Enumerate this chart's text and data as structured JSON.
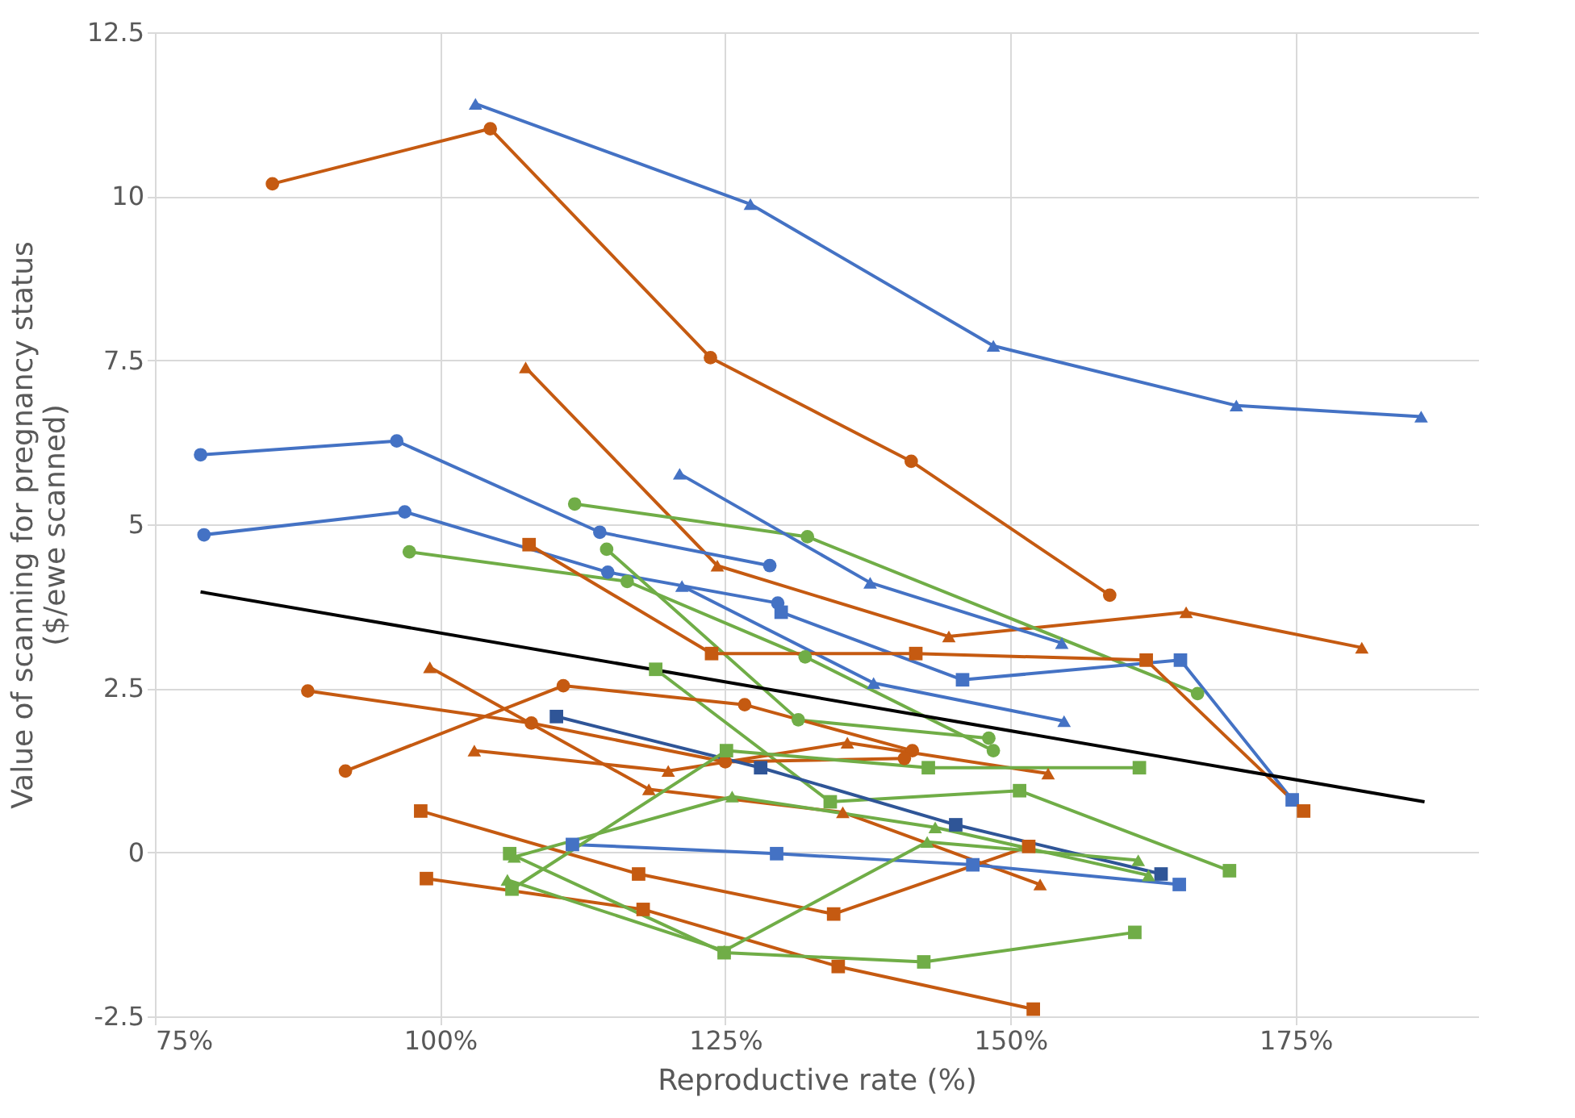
{
  "chart_data": {
    "type": "line",
    "xlabel": "Reproductive rate (%)",
    "ylabel": "Value of scanning for pregnancy status\n($/ewe scanned)",
    "xlim": [
      75,
      191
    ],
    "xticks": [
      {
        "value": 75,
        "label": "75%"
      },
      {
        "value": 100,
        "label": "100%"
      },
      {
        "value": 125,
        "label": "125%"
      },
      {
        "value": 150,
        "label": "150%"
      },
      {
        "value": 175,
        "label": "175%"
      }
    ],
    "ylim": [
      -2.5,
      12.5
    ],
    "yticks": [
      -2.5,
      0,
      2.5,
      5,
      7.5,
      10,
      12.5
    ],
    "grid": true,
    "line_style": "solid",
    "series": [
      {
        "color": "#4472c4",
        "marker": "triangle",
        "x": [
          103.1,
          127.2,
          148.5,
          169.8,
          186.0
        ],
        "values": [
          11.41,
          9.88,
          7.72,
          6.81,
          6.64
        ]
      },
      {
        "color": "#c55a11",
        "marker": "circle",
        "x": [
          85.3,
          104.4,
          123.7,
          141.3,
          158.7
        ],
        "values": [
          10.19,
          11.03,
          7.54,
          5.96,
          3.92
        ]
      },
      {
        "color": "#c55a11",
        "marker": "triangle",
        "x": [
          107.5,
          124.3,
          144.6,
          165.4,
          180.8
        ],
        "values": [
          7.39,
          4.37,
          3.29,
          3.66,
          3.12
        ]
      },
      {
        "color": "#4472c4",
        "marker": "circle",
        "x": [
          79.0,
          96.2,
          114.0,
          128.9
        ],
        "values": [
          6.06,
          6.27,
          4.88,
          4.37
        ]
      },
      {
        "color": "#4472c4",
        "marker": "circle",
        "x": [
          79.3,
          96.9,
          114.7,
          129.6
        ],
        "values": [
          4.84,
          5.19,
          4.27,
          3.8
        ]
      },
      {
        "color": "#70ad47",
        "marker": "circle",
        "x": [
          111.8,
          132.2,
          166.4
        ],
        "values": [
          5.31,
          4.81,
          2.42
        ]
      },
      {
        "color": "#70ad47",
        "marker": "circle",
        "x": [
          97.3,
          116.4,
          132.0,
          148.5
        ],
        "values": [
          4.58,
          4.13,
          2.98,
          1.55
        ]
      },
      {
        "color": "#70ad47",
        "marker": "circle",
        "x": [
          114.6,
          131.4,
          148.1
        ],
        "values": [
          4.62,
          2.02,
          1.74
        ]
      },
      {
        "color": "#4472c4",
        "marker": "triangle",
        "x": [
          121.2,
          138.0,
          154.7
        ],
        "values": [
          4.06,
          2.58,
          2.0
        ]
      },
      {
        "color": "#4472c4",
        "marker": "triangle",
        "x": [
          121.0,
          137.7,
          154.5
        ],
        "values": [
          5.77,
          4.11,
          3.19
        ]
      },
      {
        "color": "#4472c4",
        "marker": "square",
        "x": [
          129.9,
          145.8,
          164.9,
          174.7
        ],
        "values": [
          3.66,
          2.63,
          2.93,
          0.8
        ]
      },
      {
        "color": "#c55a11",
        "marker": "square",
        "x": [
          107.8,
          123.8,
          141.7,
          161.9,
          175.7
        ],
        "values": [
          4.69,
          3.03,
          3.03,
          2.93,
          0.63
        ]
      },
      {
        "color": "#70ad47",
        "marker": "square",
        "x": [
          118.9,
          134.2,
          150.8,
          169.2
        ],
        "values": [
          2.79,
          0.77,
          0.94,
          -0.28
        ]
      },
      {
        "color": "#c55a11",
        "marker": "circle",
        "x": [
          91.7,
          110.8,
          126.7,
          141.4
        ],
        "values": [
          1.24,
          2.54,
          2.25,
          1.55
        ]
      },
      {
        "color": "#c55a11",
        "marker": "triangle",
        "x": [
          103.0,
          120.0,
          135.7,
          153.3
        ],
        "values": [
          1.55,
          1.24,
          1.67,
          1.2
        ]
      },
      {
        "color": "#c55a11",
        "marker": "circle",
        "x": [
          88.4,
          108.0,
          125.0,
          140.7
        ],
        "values": [
          2.46,
          1.97,
          1.38,
          1.43
        ]
      },
      {
        "color": "#c55a11",
        "marker": "triangle",
        "x": [
          99.1,
          118.3,
          135.3,
          152.6
        ],
        "values": [
          2.82,
          0.96,
          0.61,
          -0.49
        ]
      },
      {
        "color": "#2f5597",
        "marker": "square",
        "x": [
          110.2,
          128.1,
          145.2,
          163.2
        ],
        "values": [
          2.07,
          1.29,
          0.42,
          -0.33
        ]
      },
      {
        "color": "#4472c4",
        "marker": "square",
        "x": [
          111.6,
          129.5,
          146.7,
          164.8
        ],
        "values": [
          0.12,
          -0.02,
          -0.19,
          -0.49
        ]
      },
      {
        "color": "#c55a11",
        "marker": "square",
        "x": [
          98.3,
          117.4,
          134.5,
          151.6
        ],
        "values": [
          0.63,
          -0.33,
          -0.94,
          0.09
        ]
      },
      {
        "color": "#c55a11",
        "marker": "square",
        "x": [
          98.8,
          117.8,
          134.9,
          152.0
        ],
        "values": [
          -0.4,
          -0.87,
          -1.74,
          -2.39
        ]
      },
      {
        "color": "#70ad47",
        "marker": "square",
        "x": [
          106.1,
          124.9,
          142.4,
          160.9
        ],
        "values": [
          -0.02,
          -1.53,
          -1.67,
          -1.22
        ]
      },
      {
        "color": "#70ad47",
        "marker": "square",
        "x": [
          106.3,
          125.1,
          142.8,
          161.3
        ],
        "values": [
          -0.56,
          1.55,
          1.29,
          1.29
        ]
      },
      {
        "color": "#70ad47",
        "marker": "triangle",
        "x": [
          105.9,
          124.9,
          142.7,
          161.2
        ],
        "values": [
          -0.42,
          -1.5,
          0.16,
          -0.12
        ]
      },
      {
        "color": "#70ad47",
        "marker": "triangle",
        "x": [
          106.5,
          125.6,
          143.4,
          162.1
        ],
        "values": [
          -0.07,
          0.85,
          0.38,
          -0.35
        ]
      },
      {
        "color": "#000000",
        "marker": "none",
        "x": [
          79.0,
          186.3
        ],
        "values": [
          3.97,
          0.77
        ]
      }
    ]
  }
}
